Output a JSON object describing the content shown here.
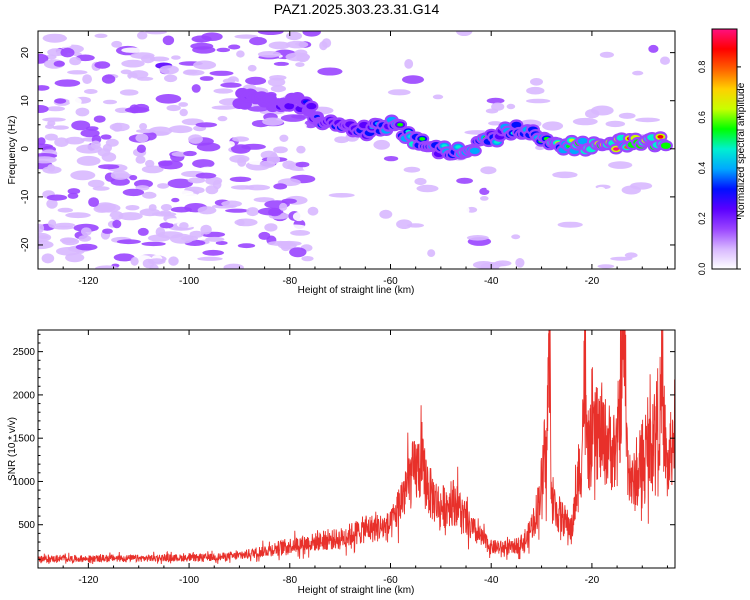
{
  "title": "PAZ1.2025.303.23.31.G14",
  "chart_data": [
    {
      "type": "heatmap",
      "title": "PAZ1.2025.303.23.31.G14",
      "xlabel": "Height of straight line (km)",
      "ylabel": "Frequency (Hz)",
      "xlim": [
        -130,
        -3.5
      ],
      "ylim": [
        -25,
        24.5
      ],
      "xticks": [
        -120,
        -100,
        -80,
        -60,
        -40,
        -20
      ],
      "yticks": [
        20,
        10,
        0,
        -10,
        -20
      ],
      "colorbar": {
        "label": "Normalized spectral amplitude",
        "range": [
          0.0,
          0.95
        ],
        "ticks": [
          0.0,
          0.2,
          0.4,
          0.6,
          0.8
        ],
        "colors": [
          "#ffffff",
          "#d8b8ff",
          "#9a45ff",
          "#5a00ff",
          "#0010ff",
          "#00a8ff",
          "#00f0d0",
          "#00ff00",
          "#c8ff00",
          "#ffd000",
          "#ff6000",
          "#ff0000",
          "#ff1080"
        ]
      },
      "ridge": [
        {
          "x": -90,
          "f": 10.5,
          "a": 0.2
        },
        {
          "x": -84,
          "f": 10,
          "a": 0.22
        },
        {
          "x": -78,
          "f": 9.5,
          "a": 0.25
        },
        {
          "x": -72,
          "f": 5,
          "a": 0.35
        },
        {
          "x": -66,
          "f": 3.5,
          "a": 0.4
        },
        {
          "x": -60,
          "f": 5,
          "a": 0.45
        },
        {
          "x": -55,
          "f": 2,
          "a": 0.5
        },
        {
          "x": -50,
          "f": 0,
          "a": 0.45
        },
        {
          "x": -45,
          "f": -1,
          "a": 0.5
        },
        {
          "x": -40,
          "f": 2,
          "a": 0.45
        },
        {
          "x": -35,
          "f": 4.5,
          "a": 0.45
        },
        {
          "x": -30,
          "f": 2,
          "a": 0.5
        },
        {
          "x": -25,
          "f": 0.5,
          "a": 0.55
        },
        {
          "x": -20,
          "f": 0.5,
          "a": 0.7
        },
        {
          "x": -15,
          "f": 1,
          "a": 0.8
        },
        {
          "x": -10,
          "f": 2,
          "a": 0.75
        },
        {
          "x": -5,
          "f": 1,
          "a": 0.8
        }
      ]
    },
    {
      "type": "line",
      "xlabel": "Height of straight line (km)",
      "ylabel": "SNR (10 * v/v)",
      "xlim": [
        -130,
        -3.5
      ],
      "ylim": [
        0,
        2750
      ],
      "xticks": [
        -120,
        -100,
        -80,
        -60,
        -40,
        -20
      ],
      "yticks": [
        500,
        1000,
        1500,
        2000,
        2500
      ],
      "color": "#e8302a",
      "series": [
        {
          "name": "SNR",
          "x": [
            -130,
            -125,
            -120,
            -115,
            -110,
            -105,
            -100,
            -95,
            -90,
            -85,
            -80,
            -75,
            -70,
            -65,
            -60,
            -56,
            -54,
            -52,
            -50,
            -47,
            -45,
            -42,
            -40,
            -36,
            -33,
            -31,
            -29,
            -28.5,
            -28,
            -27,
            -24,
            -22,
            -21.5,
            -21,
            -19,
            -17,
            -15,
            -13.5,
            -13,
            -12,
            -10,
            -8,
            -6,
            -5,
            -3.5
          ],
          "values": [
            100,
            110,
            105,
            115,
            110,
            120,
            115,
            125,
            140,
            200,
            260,
            300,
            340,
            450,
            480,
            1050,
            1200,
            850,
            700,
            780,
            520,
            350,
            240,
            230,
            320,
            650,
            1300,
            2550,
            800,
            650,
            450,
            1300,
            2350,
            1300,
            1550,
            1450,
            1300,
            2750,
            1300,
            950,
            1150,
            1500,
            1900,
            1100,
            1650
          ]
        }
      ]
    }
  ]
}
